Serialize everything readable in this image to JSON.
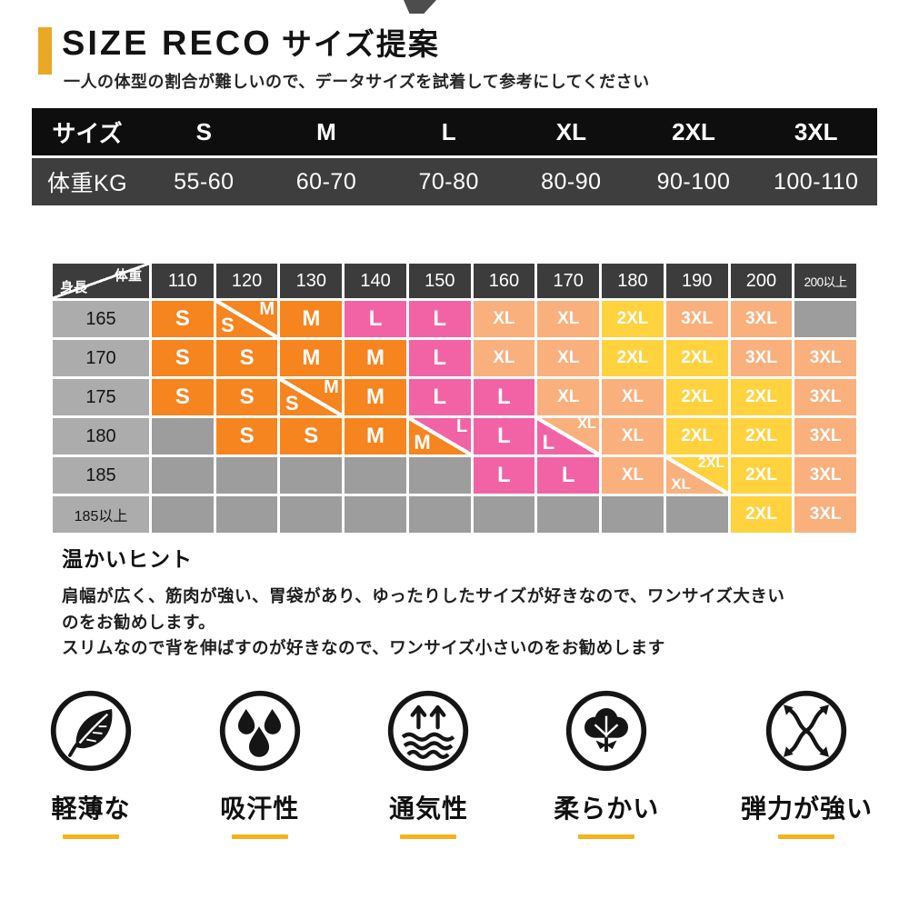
{
  "header": {
    "title_en": "SIZE RECO",
    "title_jp": "サイズ提案",
    "subtitle": "一人の体型の割合が難しいので、データサイズを試着して参考にしてください"
  },
  "weight_table": {
    "columns": [
      "サイズ",
      "S",
      "M",
      "L",
      "XL",
      "2XL",
      "3XL"
    ],
    "row": [
      "体重KG",
      "55-60",
      "60-70",
      "70-80",
      "80-90",
      "90-100",
      "100-110"
    ]
  },
  "matrix": {
    "corner_top": "体重",
    "corner_bottom": "身長",
    "columns": [
      "110",
      "120",
      "130",
      "140",
      "150",
      "160",
      "170",
      "180",
      "190",
      "200",
      "200以上"
    ],
    "rows": [
      {
        "label": "165",
        "cells": [
          {
            "text": "S",
            "color": "orange"
          },
          {
            "split": [
              {
                "text": "S",
                "color": "orange"
              },
              {
                "text": "M",
                "color": "orange"
              }
            ]
          },
          {
            "text": "M",
            "color": "orange"
          },
          {
            "text": "L",
            "color": "pink"
          },
          {
            "text": "L",
            "color": "pink"
          },
          {
            "text": "XL",
            "color": "salmon"
          },
          {
            "text": "XL",
            "color": "salmon"
          },
          {
            "text": "2XL",
            "color": "yellow"
          },
          {
            "text": "3XL",
            "color": "salmon"
          },
          {
            "text": "3XL",
            "color": "salmon"
          },
          {
            "empty": true
          }
        ]
      },
      {
        "label": "170",
        "cells": [
          {
            "text": "S",
            "color": "orange"
          },
          {
            "text": "S",
            "color": "orange"
          },
          {
            "text": "M",
            "color": "orange"
          },
          {
            "text": "M",
            "color": "orange"
          },
          {
            "text": "L",
            "color": "pink"
          },
          {
            "text": "XL",
            "color": "salmon"
          },
          {
            "text": "XL",
            "color": "salmon"
          },
          {
            "text": "2XL",
            "color": "yellow"
          },
          {
            "text": "2XL",
            "color": "yellow"
          },
          {
            "text": "3XL",
            "color": "salmon"
          },
          {
            "text": "3XL",
            "color": "salmon"
          }
        ]
      },
      {
        "label": "175",
        "cells": [
          {
            "text": "S",
            "color": "orange"
          },
          {
            "text": "S",
            "color": "orange"
          },
          {
            "split": [
              {
                "text": "S",
                "color": "orange"
              },
              {
                "text": "M",
                "color": "orange"
              }
            ]
          },
          {
            "text": "M",
            "color": "orange"
          },
          {
            "text": "L",
            "color": "pink"
          },
          {
            "text": "L",
            "color": "pink"
          },
          {
            "text": "XL",
            "color": "salmon"
          },
          {
            "text": "XL",
            "color": "salmon"
          },
          {
            "text": "2XL",
            "color": "yellow"
          },
          {
            "text": "2XL",
            "color": "yellow"
          },
          {
            "text": "3XL",
            "color": "salmon"
          }
        ]
      },
      {
        "label": "180",
        "cells": [
          {
            "empty": true
          },
          {
            "text": "S",
            "color": "orange"
          },
          {
            "text": "S",
            "color": "orange"
          },
          {
            "text": "M",
            "color": "orange"
          },
          {
            "split": [
              {
                "text": "M",
                "color": "orange"
              },
              {
                "text": "L",
                "color": "pink"
              }
            ]
          },
          {
            "text": "L",
            "color": "pink"
          },
          {
            "split": [
              {
                "text": "L",
                "color": "pink"
              },
              {
                "text": "XL",
                "color": "salmon"
              }
            ]
          },
          {
            "text": "XL",
            "color": "salmon"
          },
          {
            "text": "2XL",
            "color": "yellow"
          },
          {
            "text": "2XL",
            "color": "yellow"
          },
          {
            "text": "3XL",
            "color": "salmon"
          }
        ]
      },
      {
        "label": "185",
        "cells": [
          {
            "empty": true
          },
          {
            "empty": true
          },
          {
            "empty": true
          },
          {
            "empty": true
          },
          {
            "empty": true
          },
          {
            "text": "L",
            "color": "pink"
          },
          {
            "text": "L",
            "color": "pink"
          },
          {
            "text": "XL",
            "color": "salmon"
          },
          {
            "split": [
              {
                "text": "XL",
                "color": "salmon"
              },
              {
                "text": "2XL",
                "color": "yellow"
              }
            ]
          },
          {
            "text": "2XL",
            "color": "yellow"
          },
          {
            "text": "3XL",
            "color": "salmon"
          }
        ]
      },
      {
        "label": "185以上",
        "cells": [
          {
            "empty": true
          },
          {
            "empty": true
          },
          {
            "empty": true
          },
          {
            "empty": true
          },
          {
            "empty": true
          },
          {
            "empty": true
          },
          {
            "empty": true
          },
          {
            "empty": true
          },
          {
            "empty": true
          },
          {
            "text": "2XL",
            "color": "yellow"
          },
          {
            "text": "3XL",
            "color": "salmon"
          }
        ]
      }
    ]
  },
  "colors": {
    "orange": "#F6841F",
    "pink": "#F263A6",
    "salmon": "#F9B07C",
    "yellow": "#FFD23E",
    "empty": "#9D9D9D",
    "accent": "#E9A825",
    "underline": "#F2B31B"
  },
  "hint": {
    "title": "温かいヒント",
    "line1": "肩幅が広く、筋肉が強い、胃袋があり、ゆったりしたサイズが好きなので、ワンサイズ大きいのをお勧めします。",
    "line2": "スリムなので背を伸ばすのが好きなので、ワンサイズ小さいのをお勧めします"
  },
  "features": [
    {
      "icon": "leaf-icon",
      "label": "軽薄な"
    },
    {
      "icon": "droplets-icon",
      "label": "吸汗性"
    },
    {
      "icon": "breathability-icon",
      "label": "通気性"
    },
    {
      "icon": "cotton-icon",
      "label": "柔らかい"
    },
    {
      "icon": "stretch-icon",
      "label": "弾力が強い"
    }
  ]
}
